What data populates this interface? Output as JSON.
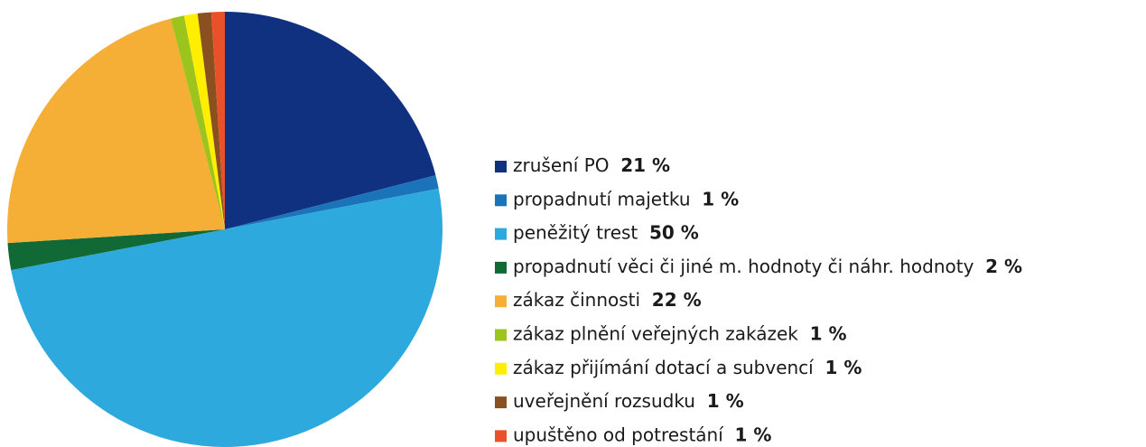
{
  "chart_data": {
    "type": "pie",
    "categories": [
      "zrušení PO",
      "propadnutí majetku",
      "peněžitý trest",
      "propadnutí věci či jiné m. hodnoty či náhr. hodnoty",
      "zákaz činnosti",
      "zákaz plnění veřejných zakázek",
      "zákaz přijímání dotací a subvencí",
      "uveřejnění rozsudku",
      "upuštěno od potrestání"
    ],
    "values": [
      21,
      1,
      50,
      2,
      22,
      1,
      1,
      1,
      1
    ],
    "value_labels": [
      "21 %",
      "1 %",
      "50 %",
      "2 %",
      "22 %",
      "1 %",
      "1 %",
      "1 %",
      "1 %"
    ],
    "colors": [
      "#10317f",
      "#1b74b9",
      "#2ea9dd",
      "#116a36",
      "#f5af36",
      "#9cc41d",
      "#ffee00",
      "#8b501f",
      "#e8512a"
    ],
    "legend": "right"
  }
}
